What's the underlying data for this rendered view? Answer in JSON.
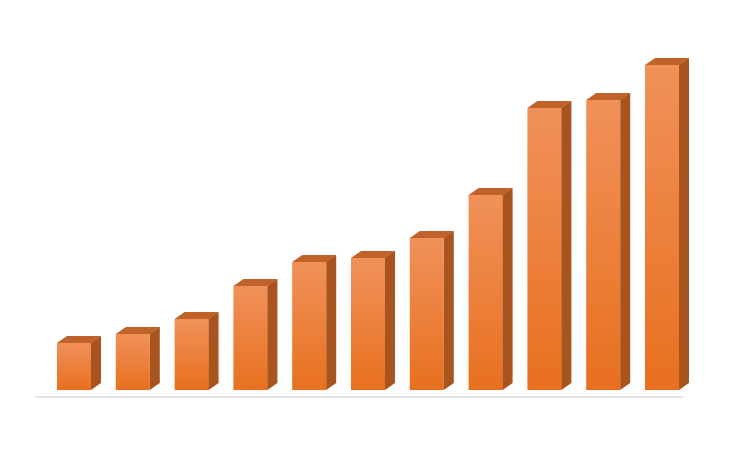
{
  "chart_data": {
    "type": "bar3d",
    "categories": [
      null,
      null,
      null,
      null,
      null,
      null,
      null,
      null,
      null,
      null,
      null
    ],
    "values": [
      47,
      56,
      71,
      104,
      128,
      132,
      152,
      195,
      282,
      290,
      325
    ],
    "color": "#ed7d31"
  }
}
